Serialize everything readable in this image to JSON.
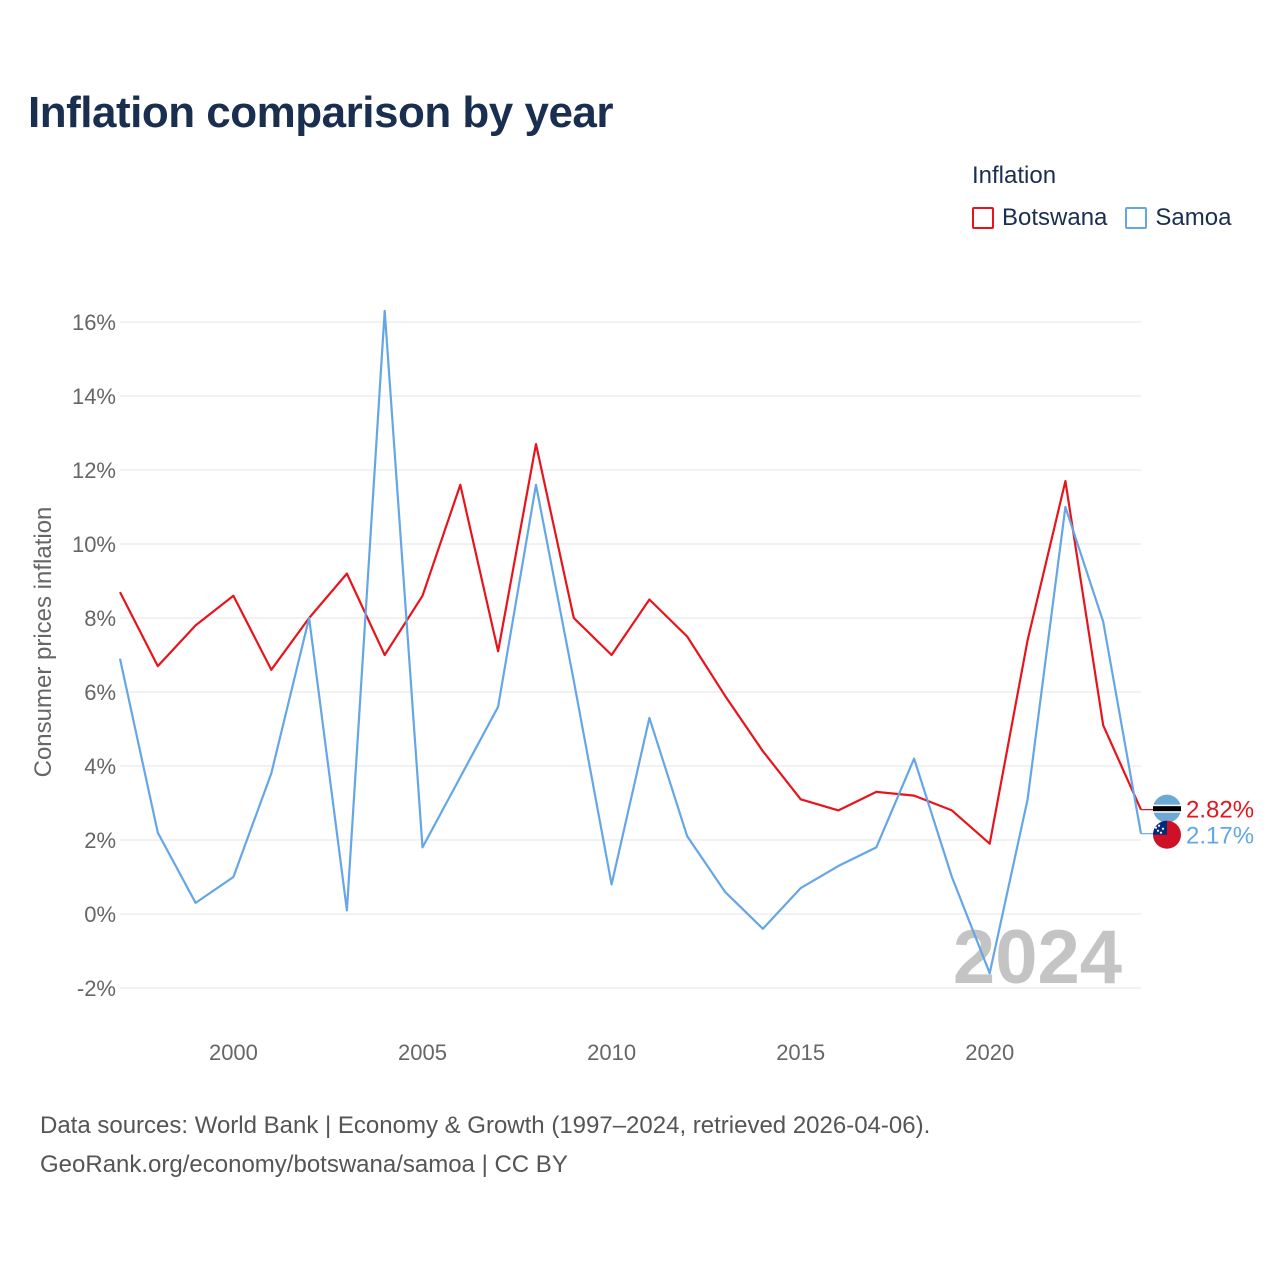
{
  "title": "Inflation comparison by year",
  "legend": {
    "title": "Inflation",
    "items": [
      {
        "label": "Botswana",
        "color": "#e8141c"
      },
      {
        "label": "Samoa",
        "color": "#64a6e6"
      }
    ]
  },
  "year_watermark": "2024",
  "source": {
    "line1": "Data sources: World Bank | Economy & Growth (1997–2024, retrieved 2026-04-06).",
    "line2": "GeoRank.org/economy/botswana/samoa | CC BY"
  },
  "chart_data": {
    "type": "line",
    "title": "Inflation comparison by year",
    "ylabel": "Consumer prices inflation",
    "xlabel": "",
    "xlim": [
      1997,
      2024
    ],
    "ylim": [
      -3,
      17
    ],
    "x_ticks": [
      2000,
      2005,
      2010,
      2015,
      2020
    ],
    "y_ticks": [
      -2,
      0,
      2,
      4,
      6,
      8,
      10,
      12,
      14,
      16
    ],
    "y_tick_labels": [
      "-2%",
      "0%",
      "2%",
      "4%",
      "6%",
      "8%",
      "10%",
      "12%",
      "14%",
      "16%"
    ],
    "grid": true,
    "x": [
      1997,
      1998,
      1999,
      2000,
      2001,
      2002,
      2003,
      2004,
      2005,
      2006,
      2007,
      2008,
      2009,
      2010,
      2011,
      2012,
      2013,
      2014,
      2015,
      2016,
      2017,
      2018,
      2019,
      2020,
      2021,
      2022,
      2023,
      2024
    ],
    "series": [
      {
        "name": "Botswana",
        "color": "#e8141c",
        "end_label": "2.82%",
        "values": [
          8.7,
          6.7,
          7.8,
          8.6,
          6.6,
          8.0,
          9.2,
          7.0,
          8.6,
          11.6,
          7.1,
          12.7,
          8.0,
          7.0,
          8.5,
          7.5,
          5.9,
          4.4,
          3.1,
          2.8,
          3.3,
          3.2,
          2.8,
          1.9,
          7.4,
          11.7,
          5.1,
          2.82
        ]
      },
      {
        "name": "Samoa",
        "color": "#64a6e6",
        "end_label": "2.17%",
        "values": [
          6.9,
          2.2,
          0.3,
          1.0,
          3.8,
          8.0,
          0.1,
          16.3,
          1.8,
          3.7,
          5.6,
          11.6,
          6.3,
          0.8,
          5.3,
          2.1,
          0.6,
          -0.4,
          0.7,
          1.3,
          1.8,
          4.2,
          1.0,
          -1.6,
          3.1,
          11.0,
          7.9,
          2.17
        ]
      }
    ]
  }
}
